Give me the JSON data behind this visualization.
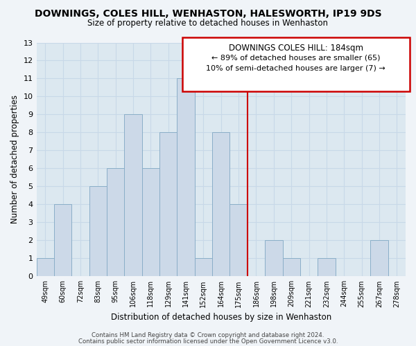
{
  "title": "DOWNINGS, COLES HILL, WENHASTON, HALESWORTH, IP19 9DS",
  "subtitle": "Size of property relative to detached houses in Wenhaston",
  "xlabel": "Distribution of detached houses by size in Wenhaston",
  "ylabel": "Number of detached properties",
  "bar_labels": [
    "49sqm",
    "60sqm",
    "72sqm",
    "83sqm",
    "95sqm",
    "106sqm",
    "118sqm",
    "129sqm",
    "141sqm",
    "152sqm",
    "164sqm",
    "175sqm",
    "186sqm",
    "198sqm",
    "209sqm",
    "221sqm",
    "232sqm",
    "244sqm",
    "255sqm",
    "267sqm",
    "278sqm"
  ],
  "bar_values": [
    1,
    4,
    0,
    5,
    6,
    9,
    6,
    8,
    11,
    1,
    8,
    4,
    0,
    2,
    1,
    0,
    1,
    0,
    0,
    2,
    0
  ],
  "bar_color": "#ccd9e8",
  "bar_edge_color": "#8aaec8",
  "annotation_title": "DOWNINGS COLES HILL: 184sqm",
  "annotation_line1": "← 89% of detached houses are smaller (65)",
  "annotation_line2": "10% of semi-detached houses are larger (7) →",
  "vline_color": "#cc0000",
  "ylim": [
    0,
    13
  ],
  "yticks": [
    0,
    1,
    2,
    3,
    4,
    5,
    6,
    7,
    8,
    9,
    10,
    11,
    12,
    13
  ],
  "footer_line1": "Contains HM Land Registry data © Crown copyright and database right 2024.",
  "footer_line2": "Contains public sector information licensed under the Open Government Licence v3.0.",
  "bg_color": "#f0f4f8",
  "grid_color": "#c8d8e8",
  "plot_bg_color": "#dce8f0"
}
